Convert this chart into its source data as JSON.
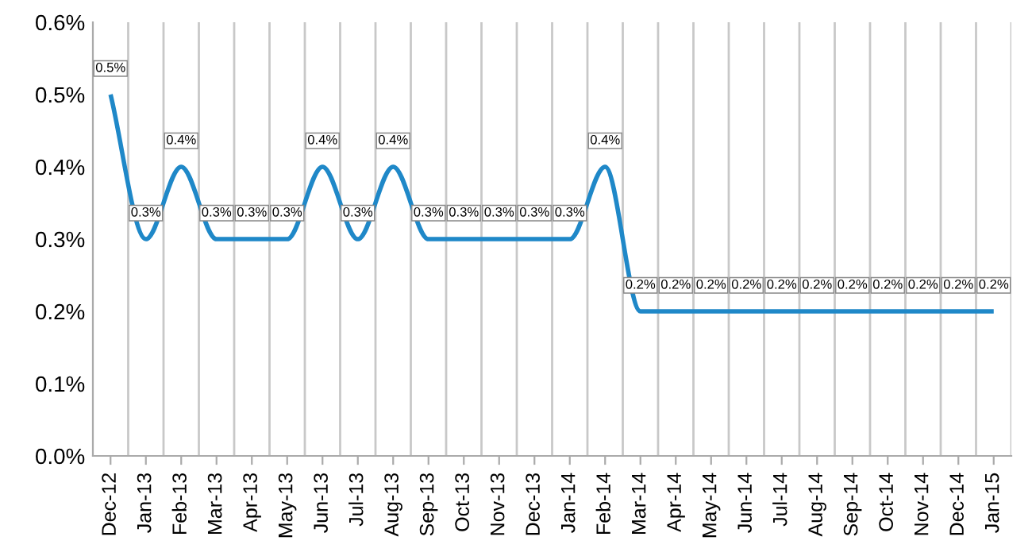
{
  "chart_data": {
    "type": "line",
    "categories": [
      "Dec-12",
      "Jan-13",
      "Feb-13",
      "Mar-13",
      "Apr-13",
      "May-13",
      "Jun-13",
      "Jul-13",
      "Aug-13",
      "Sep-13",
      "Oct-13",
      "Nov-13",
      "Dec-13",
      "Jan-14",
      "Feb-14",
      "Mar-14",
      "Apr-14",
      "May-14",
      "Jun-14",
      "Jul-14",
      "Aug-14",
      "Sep-14",
      "Oct-14",
      "Nov-14",
      "Dec-14",
      "Jan-15"
    ],
    "series": [
      {
        "color": "#1f88c8",
        "values": [
          0.5,
          0.3,
          0.4,
          0.3,
          0.3,
          0.3,
          0.4,
          0.3,
          0.4,
          0.3,
          0.3,
          0.3,
          0.3,
          0.3,
          0.4,
          0.2,
          0.2,
          0.2,
          0.2,
          0.2,
          0.2,
          0.2,
          0.2,
          0.2,
          0.2,
          0.2
        ],
        "value_labels": [
          "0.5%",
          "0.3%",
          "0.4%",
          "0.3%",
          "0.3%",
          "0.3%",
          "0.4%",
          "0.3%",
          "0.4%",
          "0.3%",
          "0.3%",
          "0.3%",
          "0.3%",
          "0.3%",
          "0.4%",
          "0.2%",
          "0.2%",
          "0.2%",
          "0.2%",
          "0.2%",
          "0.2%",
          "0.2%",
          "0.2%",
          "0.2%",
          "0.2%",
          "0.2%"
        ]
      }
    ],
    "ylim": [
      0,
      0.6
    ],
    "yticks": [
      {
        "value": 0,
        "label": "0.0%"
      },
      {
        "value": 0.1,
        "label": "0.1%"
      },
      {
        "value": 0.2,
        "label": "0.2%"
      },
      {
        "value": 0.3,
        "label": "0.3%"
      },
      {
        "value": 0.4,
        "label": "0.4%"
      },
      {
        "value": 0.5,
        "label": "0.5%"
      },
      {
        "value": 0.6,
        "label": "0.6%"
      }
    ],
    "grid": "x",
    "legend": false,
    "marker": "none",
    "line_style": "solid"
  }
}
